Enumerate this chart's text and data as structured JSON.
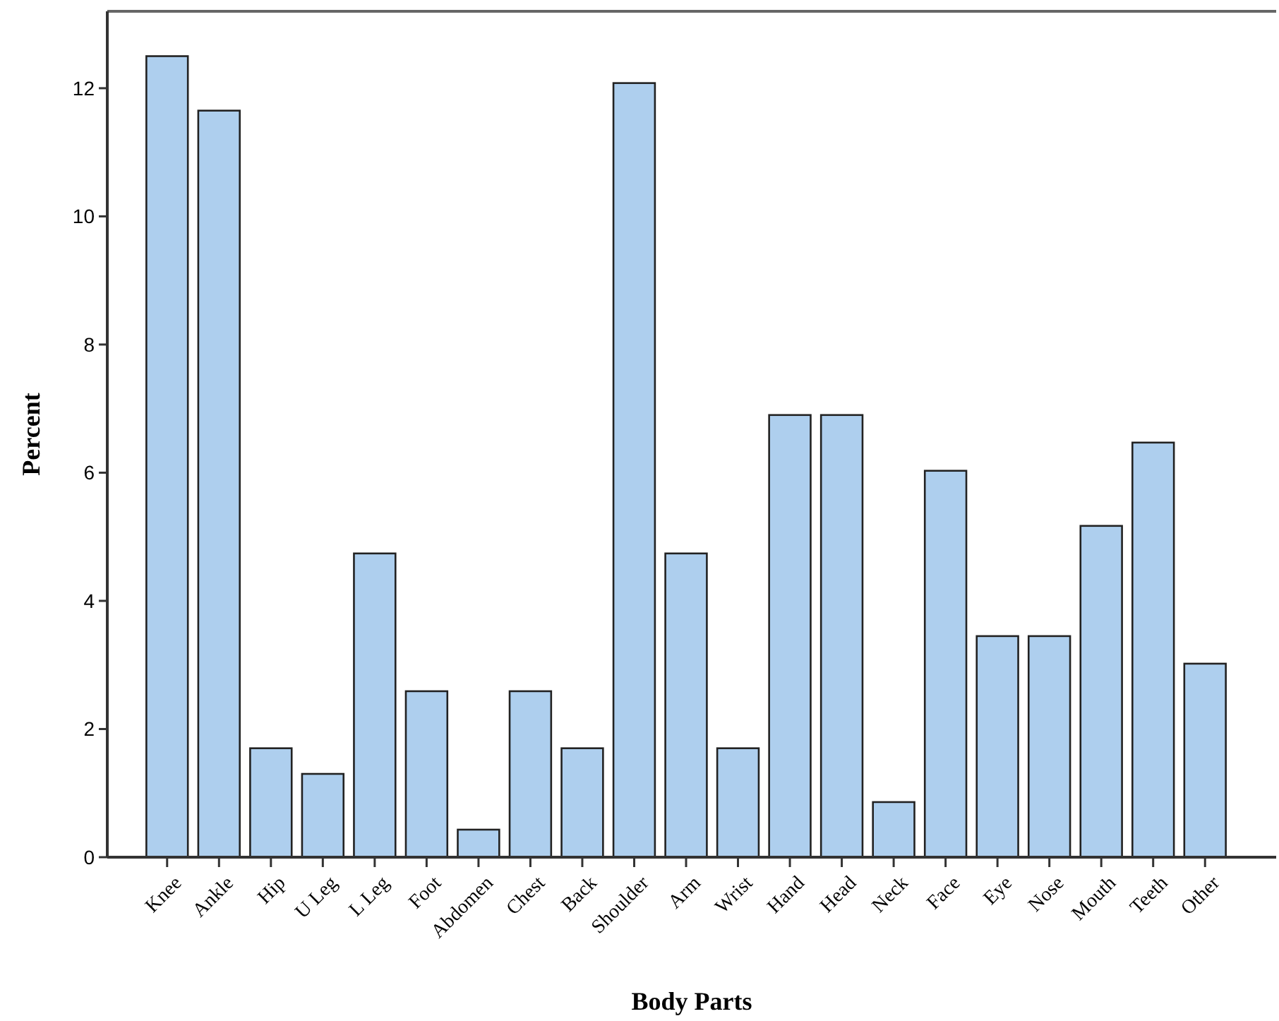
{
  "chart_data": {
    "type": "bar",
    "xlabel": "Body Parts",
    "ylabel": "Percent",
    "categories": [
      "Knee",
      "Ankle",
      "Hip",
      "U Leg",
      "L Leg",
      "Foot",
      "Abdomen",
      "Chest",
      "Back",
      "Shoulder",
      "Arm",
      "Wrist",
      "Hand",
      "Head",
      "Neck",
      "Face",
      "Eye",
      "Nose",
      "Mouth",
      "Teeth",
      "Other"
    ],
    "values": [
      12.5,
      11.65,
      1.7,
      1.3,
      4.74,
      2.59,
      0.43,
      2.59,
      1.7,
      12.08,
      4.74,
      1.7,
      6.9,
      6.9,
      0.86,
      6.03,
      3.45,
      3.45,
      5.17,
      6.47,
      3.02
    ],
    "color": "#aecfee",
    "ylim": [
      0,
      13.2
    ],
    "yticks": [
      0,
      2,
      4,
      6,
      8,
      10,
      12
    ],
    "grid": false
  }
}
